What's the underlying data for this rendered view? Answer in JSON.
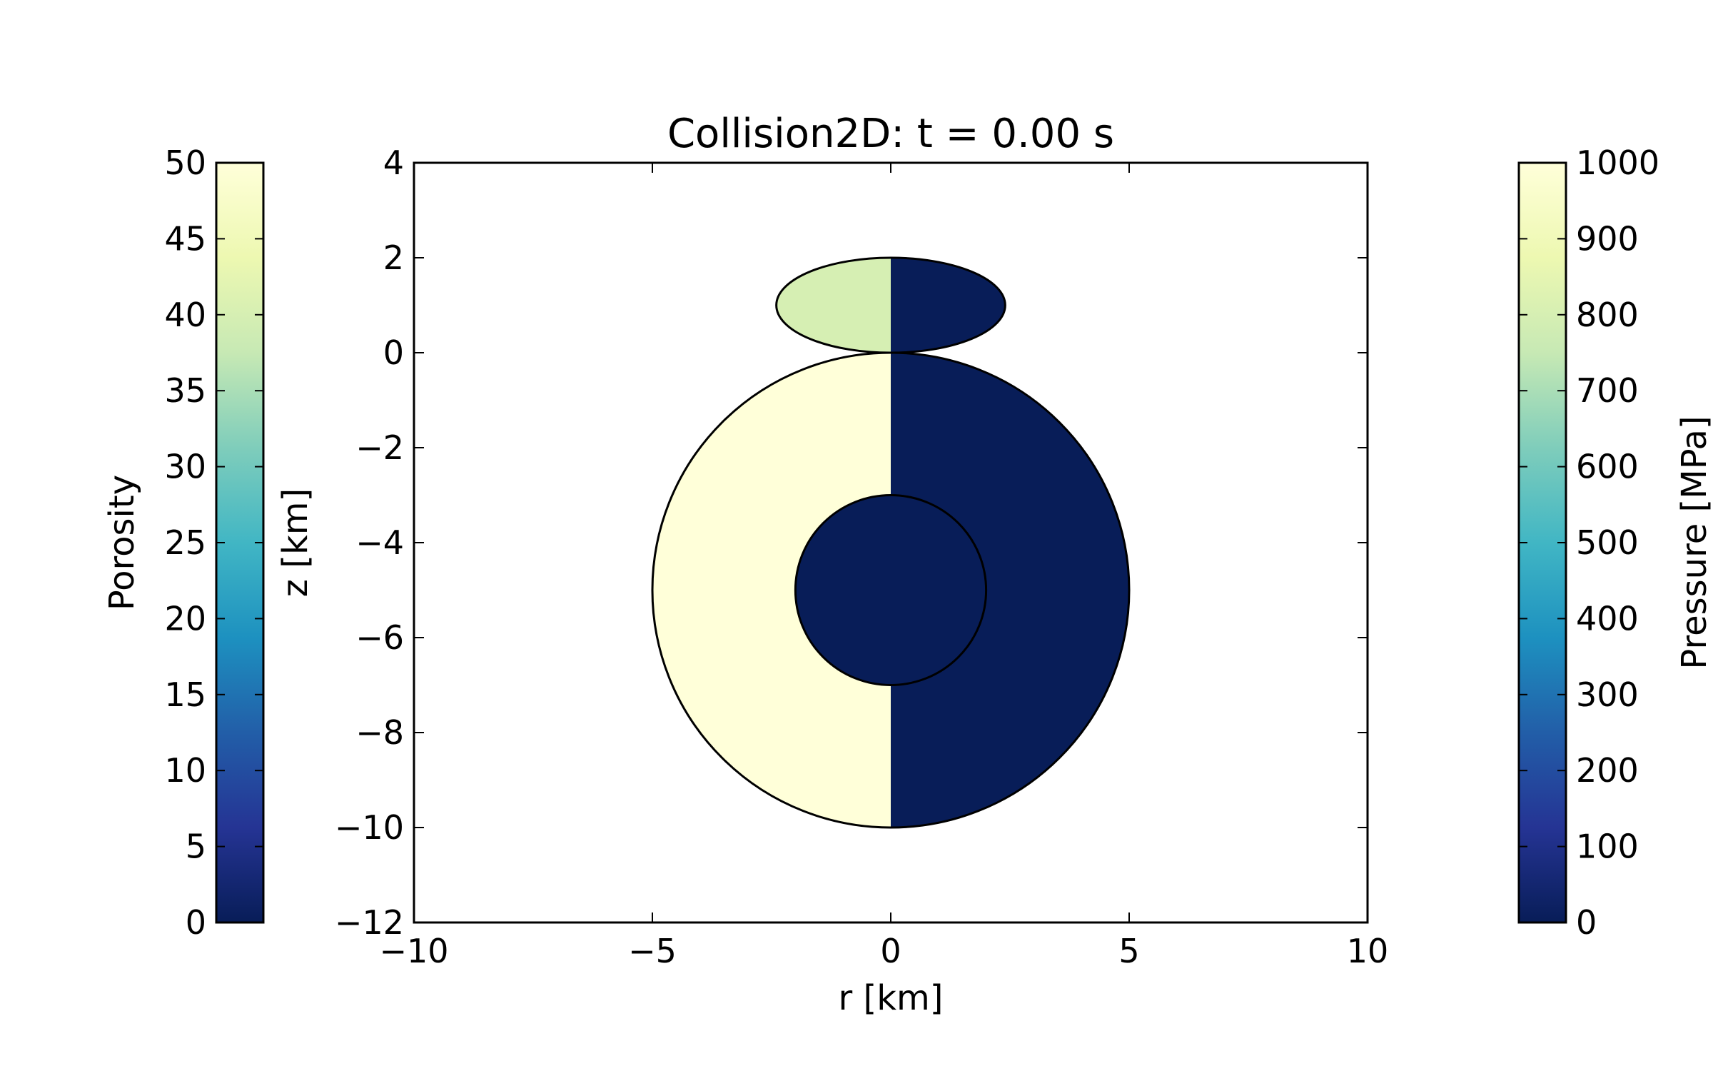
{
  "chart_data": {
    "type": "heatmap",
    "title": "Collision2D: t =  0.00 s",
    "xlabel": "r [km]",
    "ylabel": "z [km]",
    "xlim": [
      -10,
      10
    ],
    "ylim": [
      -12,
      4
    ],
    "xticks": [
      -10,
      -5,
      0,
      5,
      10
    ],
    "xtick_labels": [
      "−10",
      "−5",
      "0",
      "5",
      "10"
    ],
    "yticks": [
      -12,
      -10,
      -8,
      -6,
      -4,
      -2,
      0,
      2,
      4
    ],
    "ytick_labels": [
      "−12",
      "−10",
      "−8",
      "−6",
      "−4",
      "−2",
      "0",
      "2",
      "4"
    ],
    "grid": false,
    "colormap": "YlGnBu_r",
    "colormap_stops": [
      "#081d58",
      "#253494",
      "#225ea8",
      "#1d91c0",
      "#41b6c4",
      "#7fcdbb",
      "#c7e9b4",
      "#edf8b1",
      "#ffffd9"
    ],
    "left_half_field": "Porosity",
    "right_half_field": "Pressure",
    "bodies": [
      {
        "name": "target",
        "center_r": 0,
        "center_z": -5,
        "radius": 5,
        "porosity": 50,
        "pressure": 0
      },
      {
        "name": "target-core",
        "center_r": 0,
        "center_z": -5,
        "radius": 2,
        "porosity": 0,
        "pressure": 0
      },
      {
        "name": "impactor",
        "center_r": 0,
        "center_z": 1,
        "semi_axis_r": 2.4,
        "semi_axis_z": 1,
        "porosity": 40,
        "pressure": 0
      }
    ],
    "colorbars": [
      {
        "side": "left",
        "label": "Porosity",
        "range": [
          0,
          50
        ],
        "ticks": [
          0,
          5,
          10,
          15,
          20,
          25,
          30,
          35,
          40,
          45,
          50
        ],
        "tick_labels": [
          "0",
          "5",
          "10",
          "15",
          "20",
          "25",
          "30",
          "35",
          "40",
          "45",
          "50"
        ]
      },
      {
        "side": "right",
        "label": "Pressure [MPa]",
        "range": [
          0,
          1000
        ],
        "ticks": [
          0,
          100,
          200,
          300,
          400,
          500,
          600,
          700,
          800,
          900,
          1000
        ],
        "tick_labels": [
          "0",
          "100",
          "200",
          "300",
          "400",
          "500",
          "600",
          "700",
          "800",
          "900",
          "1000"
        ]
      }
    ]
  }
}
